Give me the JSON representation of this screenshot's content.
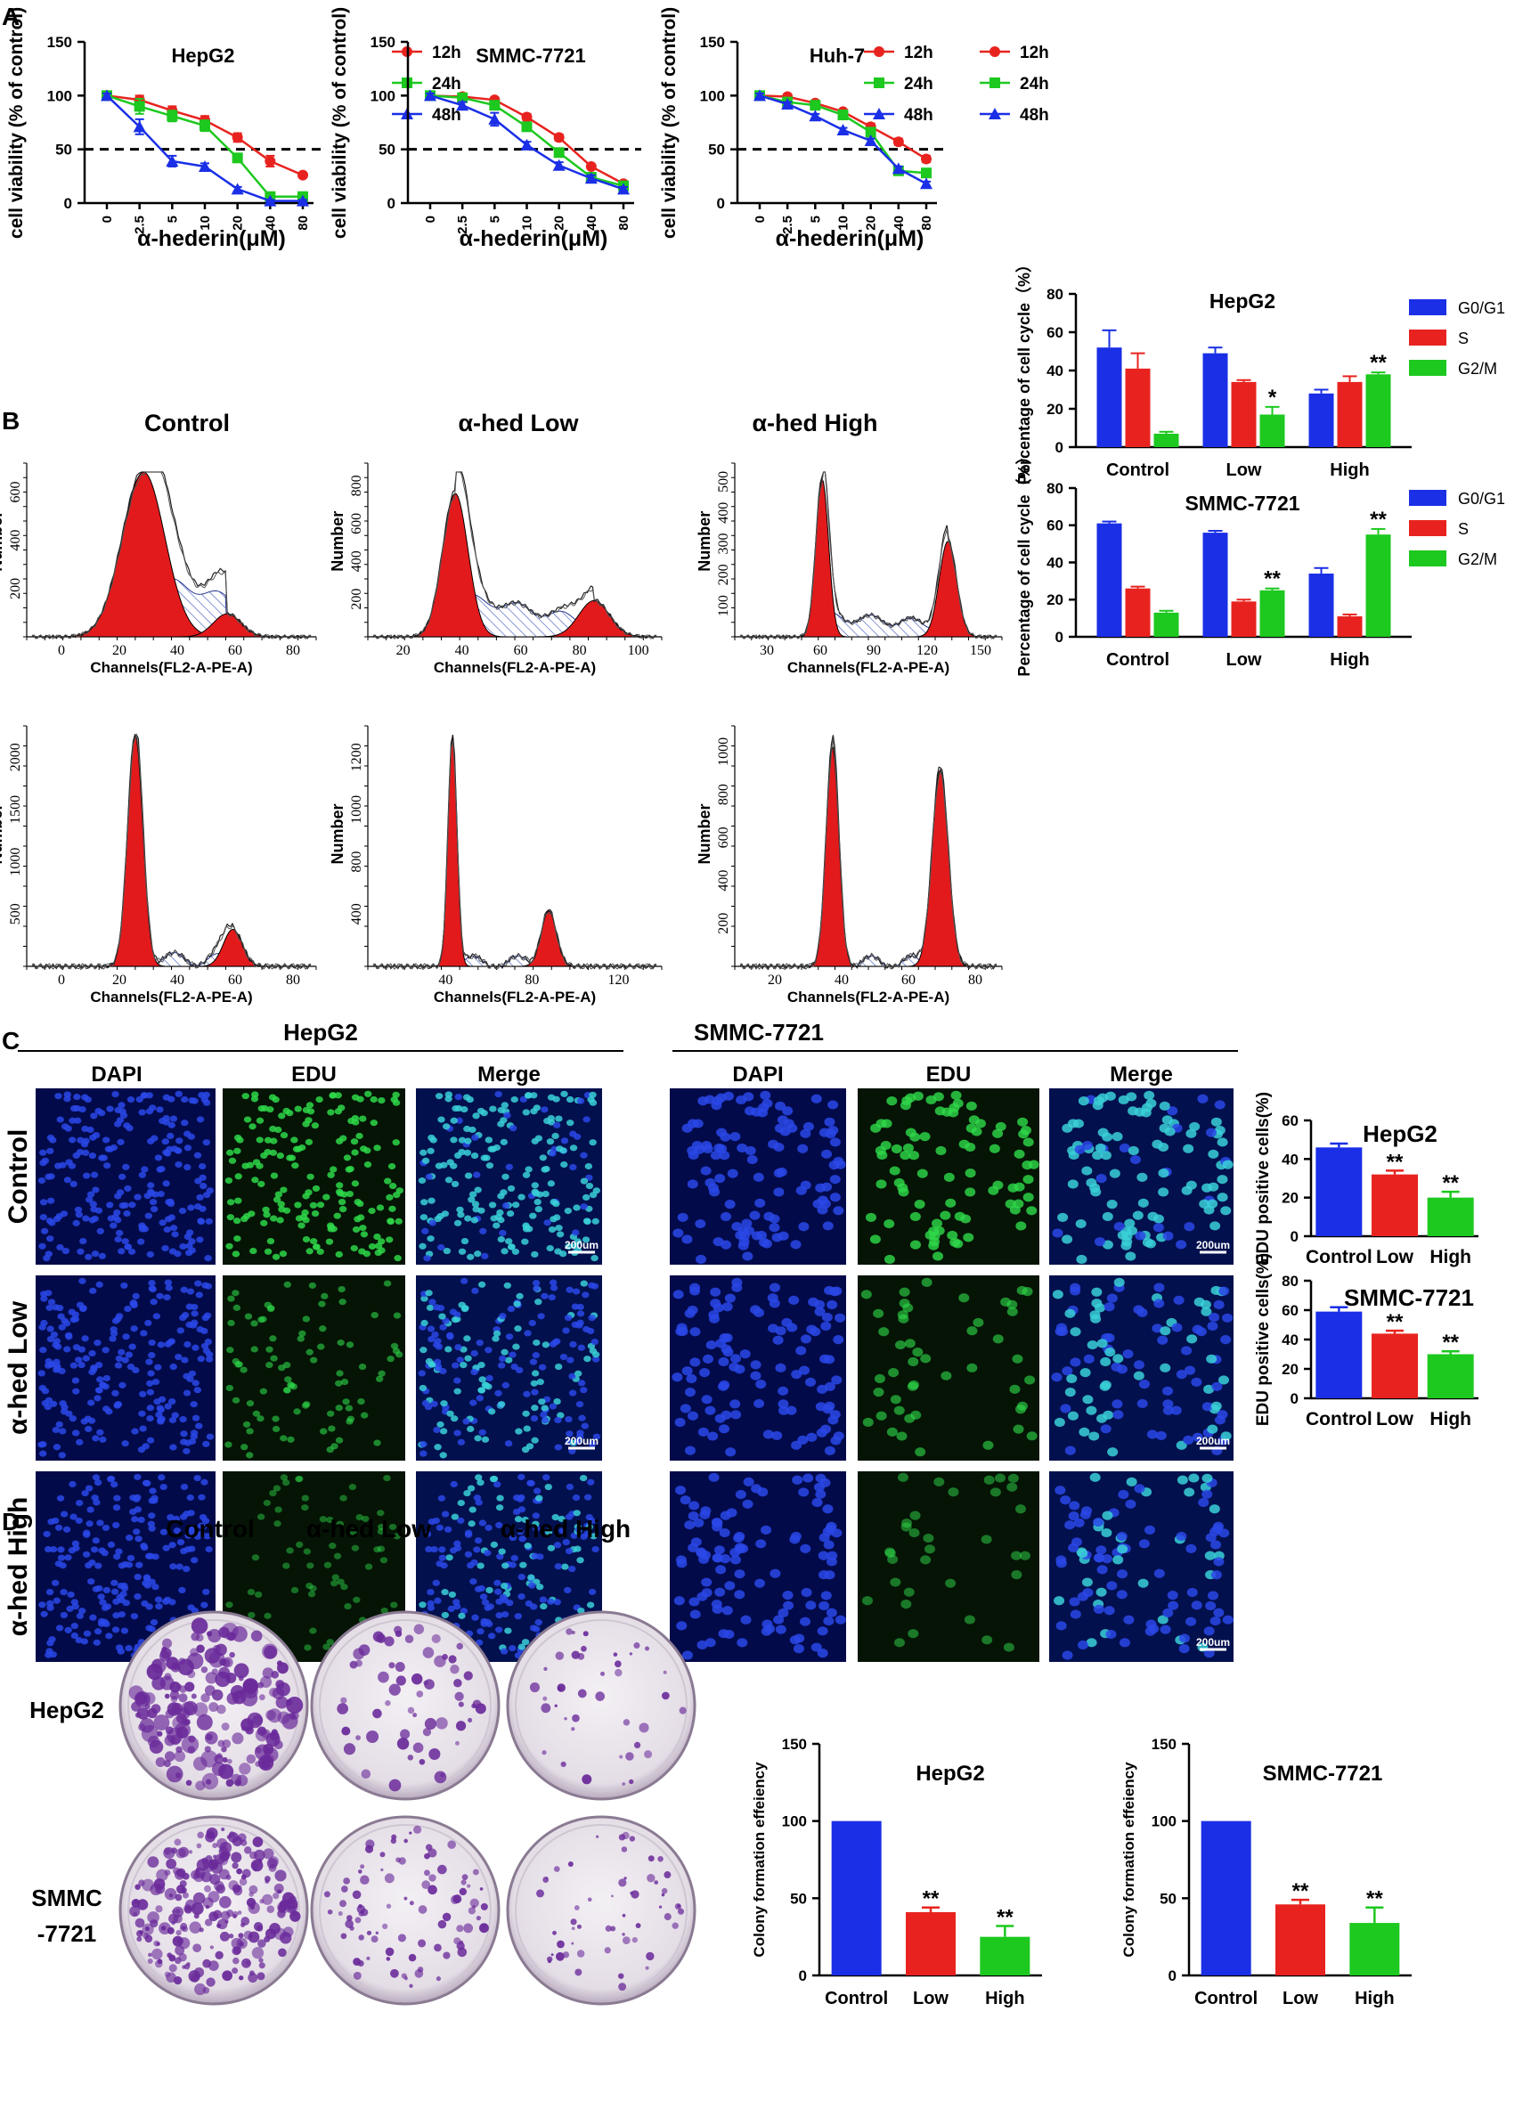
{
  "panel_labels": {
    "A": "A",
    "B": "B",
    "C": "C",
    "D": "D"
  },
  "colors": {
    "red": "#e8231f",
    "green": "#1dc81f",
    "blue": "#1a2fe6",
    "fill_red": "#e31a1c",
    "hatch": "#4a5fc0",
    "dapi": "#1530c8",
    "edu": "#22b833",
    "colony": "#6a2a9a"
  },
  "chart_data": [
    {
      "id": "viability_hepg2",
      "type": "line",
      "title": "HepG2",
      "ylabel": "cell viability (% of control)",
      "xlabel": "α-hederin(μM)",
      "categories": [
        "0",
        "2.5",
        "5",
        "10",
        "20",
        "40",
        "80"
      ],
      "ylim": [
        0,
        150
      ],
      "yticks": [
        "0",
        "50",
        "100",
        "150"
      ],
      "reference_line": 50,
      "series": [
        {
          "name": "12h",
          "color": "#e8231f",
          "marker": "circle",
          "values": [
            100,
            96,
            86,
            77,
            61,
            39,
            26
          ],
          "errors": [
            2,
            4,
            4,
            4,
            4,
            5,
            2
          ]
        },
        {
          "name": "24h",
          "color": "#1dc81f",
          "marker": "square",
          "values": [
            100,
            90,
            81,
            72,
            42,
            6,
            6
          ],
          "errors": [
            2,
            7,
            5,
            5,
            3,
            2,
            2
          ]
        },
        {
          "name": "48h",
          "color": "#1a2fe6",
          "marker": "triangle",
          "values": [
            100,
            71,
            39,
            34,
            13,
            2,
            2
          ],
          "errors": [
            2,
            7,
            5,
            3,
            2,
            1,
            1
          ]
        }
      ]
    },
    {
      "id": "viability_smmc",
      "type": "line",
      "title": "SMMC-7721",
      "ylabel": "cell viability (% of control)",
      "xlabel": "α-hederin(μM)",
      "categories": [
        "0",
        "2.5",
        "5",
        "10",
        "20",
        "40",
        "80"
      ],
      "ylim": [
        0,
        150
      ],
      "yticks": [
        "0",
        "50",
        "100",
        "150"
      ],
      "reference_line": 50,
      "series": [
        {
          "name": "12h",
          "color": "#e8231f",
          "marker": "circle",
          "values": [
            100,
            99,
            96,
            80,
            61,
            34,
            18
          ],
          "errors": [
            2,
            2,
            2,
            3,
            3,
            2,
            2
          ]
        },
        {
          "name": "24h",
          "color": "#1dc81f",
          "marker": "square",
          "values": [
            100,
            98,
            91,
            71,
            47,
            24,
            16
          ],
          "errors": [
            2,
            2,
            3,
            3,
            3,
            2,
            2
          ]
        },
        {
          "name": "48h",
          "color": "#1a2fe6",
          "marker": "triangle",
          "values": [
            100,
            91,
            78,
            54,
            35,
            23,
            13
          ],
          "errors": [
            2,
            3,
            6,
            3,
            3,
            3,
            2
          ]
        }
      ]
    },
    {
      "id": "viability_huh7",
      "type": "line",
      "title": "Huh-7",
      "ylabel": "cell viability (% of control)",
      "xlabel": "α-hederin(μM)",
      "categories": [
        "0",
        "2.5",
        "5",
        "10",
        "20",
        "40",
        "80"
      ],
      "ylim": [
        0,
        150
      ],
      "yticks": [
        "0",
        "50",
        "100",
        "150"
      ],
      "reference_line": 50,
      "series": [
        {
          "name": "12h",
          "color": "#e8231f",
          "marker": "circle",
          "values": [
            100,
            99,
            93,
            85,
            71,
            57,
            41
          ],
          "errors": [
            2,
            2,
            2,
            2,
            3,
            3,
            3
          ]
        },
        {
          "name": "24h",
          "color": "#1dc81f",
          "marker": "square",
          "values": [
            100,
            94,
            91,
            82,
            66,
            30,
            28
          ],
          "errors": [
            2,
            2,
            2,
            2,
            2,
            3,
            2
          ]
        },
        {
          "name": "48h",
          "color": "#1a2fe6",
          "marker": "triangle",
          "values": [
            100,
            92,
            81,
            68,
            58,
            32,
            18
          ],
          "errors": [
            2,
            2,
            2,
            2,
            2,
            2,
            2
          ]
        }
      ]
    },
    {
      "id": "cellcycle_hepg2",
      "type": "bar",
      "title": "HepG2",
      "ylabel": "Percentage of cell cycle（%）",
      "categories": [
        "Control",
        "Low",
        "High"
      ],
      "ylim": [
        0,
        80
      ],
      "yticks": [
        "0",
        "20",
        "40",
        "60",
        "80"
      ],
      "series": [
        {
          "name": "G0/G1",
          "color": "#1a2fe6",
          "values": [
            52,
            49,
            28
          ],
          "errors": [
            9,
            3,
            2
          ],
          "sig": [
            "",
            "",
            ""
          ]
        },
        {
          "name": "S",
          "color": "#e8231f",
          "values": [
            41,
            34,
            34
          ],
          "errors": [
            8,
            1,
            3
          ],
          "sig": [
            "",
            "",
            ""
          ]
        },
        {
          "name": "G2/M",
          "color": "#1dc81f",
          "values": [
            7,
            17,
            38
          ],
          "errors": [
            1,
            4,
            1
          ],
          "sig": [
            "",
            "*",
            "**"
          ]
        }
      ]
    },
    {
      "id": "cellcycle_smmc",
      "type": "bar",
      "title": "SMMC-7721",
      "ylabel": "Percentage of cell cycle（%）",
      "categories": [
        "Control",
        "Low",
        "High"
      ],
      "ylim": [
        0,
        80
      ],
      "yticks": [
        "0",
        "20",
        "40",
        "60",
        "80"
      ],
      "series": [
        {
          "name": "G0/G1",
          "color": "#1a2fe6",
          "values": [
            61,
            56,
            34
          ],
          "errors": [
            1,
            1,
            3
          ],
          "sig": [
            "",
            "",
            ""
          ]
        },
        {
          "name": "S",
          "color": "#e8231f",
          "values": [
            26,
            19,
            11
          ],
          "errors": [
            1,
            1,
            1
          ],
          "sig": [
            "",
            "",
            ""
          ]
        },
        {
          "name": "G2/M",
          "color": "#1dc81f",
          "values": [
            13,
            25,
            55
          ],
          "errors": [
            1,
            1,
            3
          ],
          "sig": [
            "",
            "**",
            "**"
          ]
        }
      ]
    },
    {
      "id": "edu_hepg2",
      "type": "bar",
      "title": "HepG2",
      "ylabel": "EDU positive cells(%)",
      "categories": [
        "Control",
        "Low",
        "High"
      ],
      "ylim": [
        0,
        60
      ],
      "yticks": [
        "0",
        "20",
        "40",
        "60"
      ],
      "colors": [
        "#1a2fe6",
        "#e8231f",
        "#1dc81f"
      ],
      "values": [
        46,
        32,
        20
      ],
      "errors": [
        2,
        2,
        3
      ],
      "sig": [
        "",
        "**",
        "**"
      ]
    },
    {
      "id": "edu_smmc",
      "type": "bar",
      "title": "SMMC-7721",
      "ylabel": "EDU positive cells(%)",
      "categories": [
        "Control",
        "Low",
        "High"
      ],
      "ylim": [
        0,
        80
      ],
      "yticks": [
        "0",
        "20",
        "40",
        "60",
        "80"
      ],
      "colors": [
        "#1a2fe6",
        "#e8231f",
        "#1dc81f"
      ],
      "values": [
        59,
        44,
        30
      ],
      "errors": [
        3,
        2,
        2
      ],
      "sig": [
        "",
        "**",
        "**"
      ]
    },
    {
      "id": "colony_hepg2",
      "type": "bar",
      "title": "HepG2",
      "ylabel": "Colony formation effeiency",
      "categories": [
        "Control",
        "Low",
        "High"
      ],
      "ylim": [
        0,
        150
      ],
      "yticks": [
        "0",
        "50",
        "100",
        "150"
      ],
      "colors": [
        "#1a2fe6",
        "#e8231f",
        "#1dc81f"
      ],
      "values": [
        100,
        41,
        25
      ],
      "errors": [
        0,
        3,
        7
      ],
      "sig": [
        "",
        "**",
        "**"
      ]
    },
    {
      "id": "colony_smmc",
      "type": "bar",
      "title": "SMMC-7721",
      "ylabel": "Colony formation effeiency",
      "categories": [
        "Control",
        "Low",
        "High"
      ],
      "ylim": [
        0,
        150
      ],
      "yticks": [
        "0",
        "50",
        "100",
        "150"
      ],
      "colors": [
        "#1a2fe6",
        "#e8231f",
        "#1dc81f"
      ],
      "values": [
        100,
        46,
        34
      ],
      "errors": [
        0,
        3,
        10
      ],
      "sig": [
        "",
        "**",
        "**"
      ]
    }
  ],
  "flow": {
    "col_titles": [
      "Control",
      "α-hed Low",
      "α-hed High"
    ],
    "ylabel": "Number",
    "xlabel": "Channels(FL2-A-PE-A)",
    "panels": [
      {
        "id": "f1",
        "xticks": [
          "0",
          "20",
          "40",
          "60",
          "80"
        ],
        "yticks": [
          "200",
          "400",
          "600"
        ]
      },
      {
        "id": "f2",
        "xticks": [
          "20",
          "40",
          "60",
          "80",
          "100"
        ],
        "yticks": [
          "200",
          "400",
          "600",
          "800"
        ]
      },
      {
        "id": "f3",
        "xticks": [
          "30",
          "60",
          "90",
          "120",
          "150"
        ],
        "yticks": [
          "100",
          "200",
          "300",
          "400",
          "500"
        ]
      },
      {
        "id": "f4",
        "xticks": [
          "0",
          "20",
          "40",
          "60",
          "80"
        ],
        "yticks": [
          "500",
          "1000",
          "1500",
          "2000"
        ]
      },
      {
        "id": "f5",
        "xticks": [
          "40",
          "80",
          "120"
        ],
        "yticks": [
          "400",
          "800",
          "1000",
          "1200"
        ]
      },
      {
        "id": "f6",
        "xticks": [
          "20",
          "40",
          "60",
          "80"
        ],
        "yticks": [
          "200",
          "400",
          "600",
          "800",
          "1000"
        ]
      }
    ]
  },
  "micro": {
    "group_titles": [
      "HepG2",
      "SMMC-7721"
    ],
    "channels": [
      "DAPI",
      "EDU",
      "Merge"
    ],
    "row_labels": [
      "Control",
      "α-hed Low",
      "α-hed High"
    ],
    "scale_bar": "200um"
  },
  "colony": {
    "col_titles": [
      "Control",
      "α-hed Low",
      "α-hed High"
    ],
    "row_labels": [
      "HepG2",
      "SMMC\n-7721"
    ]
  }
}
